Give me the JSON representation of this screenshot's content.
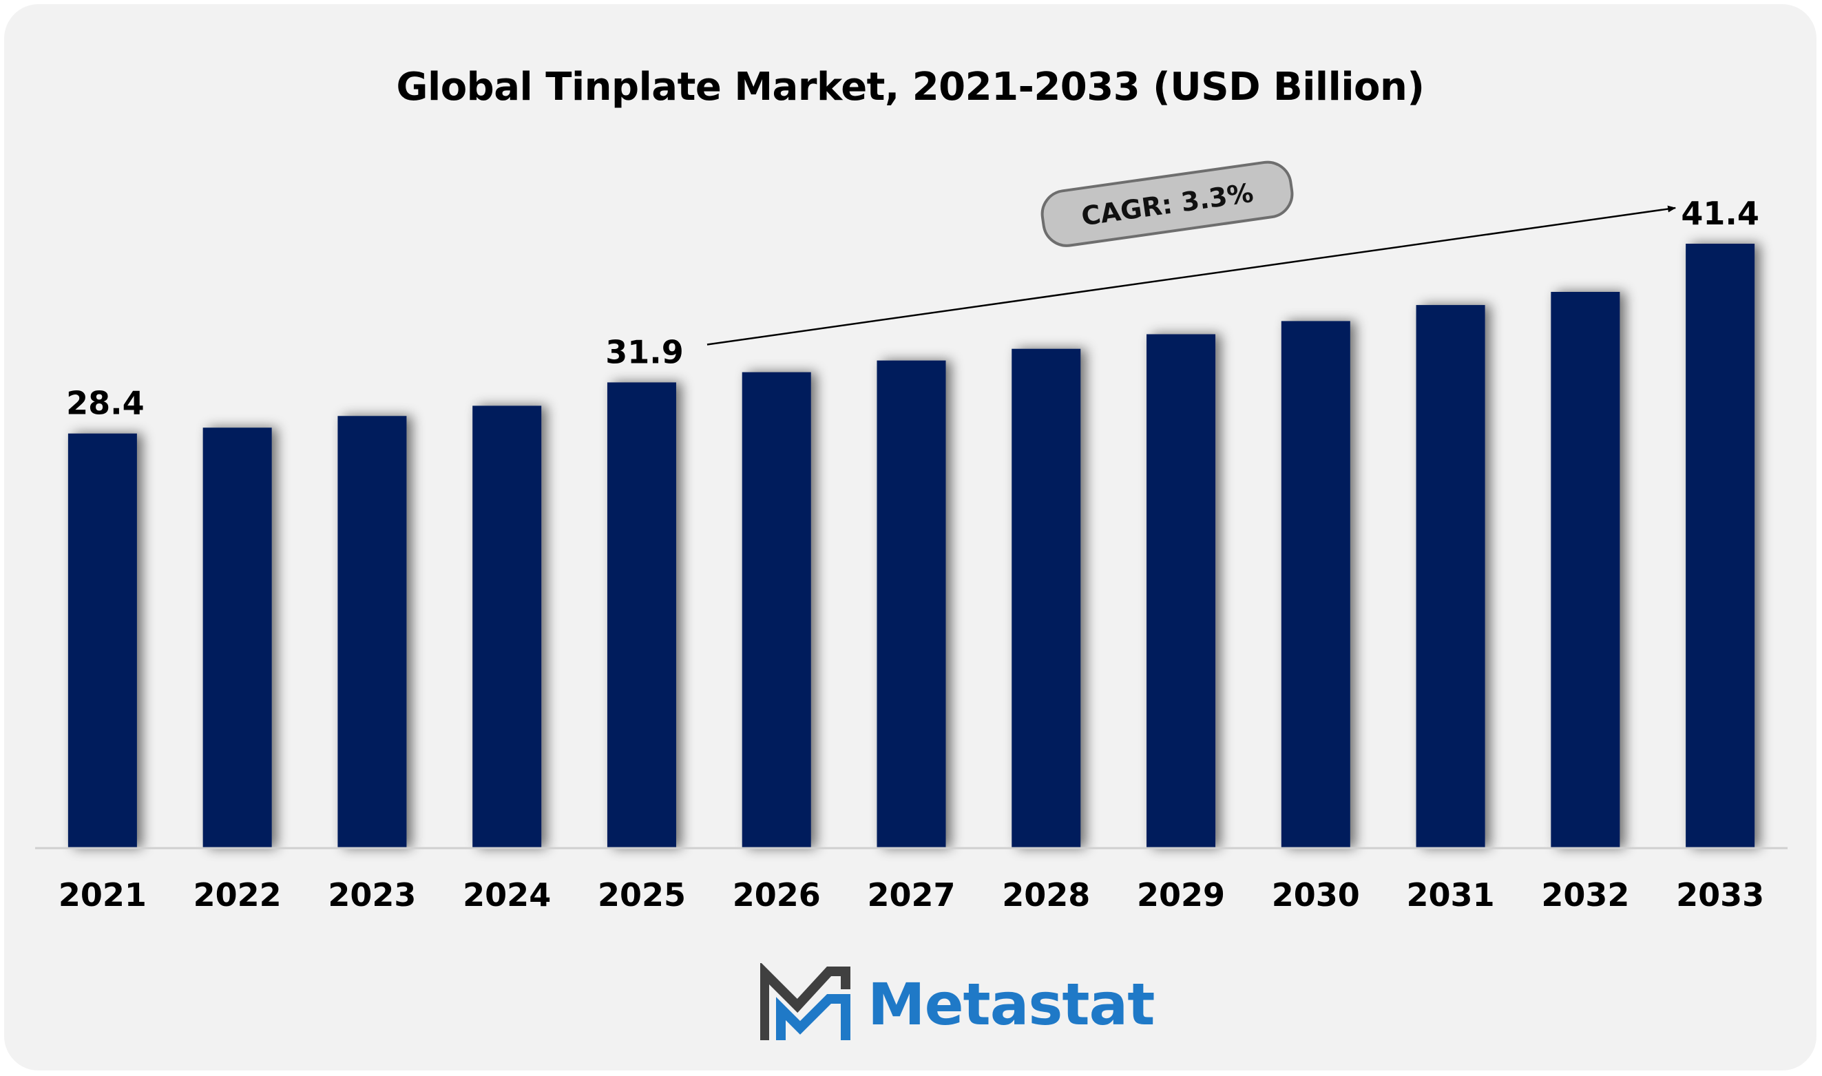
{
  "chart_data": {
    "type": "bar",
    "title": "Global Tinplate Market, 2021-2033 (USD Billion)",
    "categories": [
      "2021",
      "2022",
      "2023",
      "2024",
      "2025",
      "2026",
      "2027",
      "2028",
      "2029",
      "2030",
      "2031",
      "2032",
      "2033"
    ],
    "values": [
      28.4,
      28.8,
      29.6,
      30.3,
      31.9,
      32.6,
      33.4,
      34.2,
      35.2,
      36.1,
      37.2,
      38.1,
      41.4
    ],
    "data_labels": {
      "2021": "28.4",
      "2025": "31.9",
      "2033": "41.4"
    },
    "annotation": "CAGR: 3.3%",
    "xlabel": "",
    "ylabel": "",
    "ylim": [
      0,
      41.4
    ],
    "grid": false,
    "bar_color": "#021e5c"
  },
  "brand": {
    "name": "Metastat",
    "color": "#1f79c7",
    "mark_color": "#404040",
    "logo_icon": "metastat-m-logo-icon"
  }
}
